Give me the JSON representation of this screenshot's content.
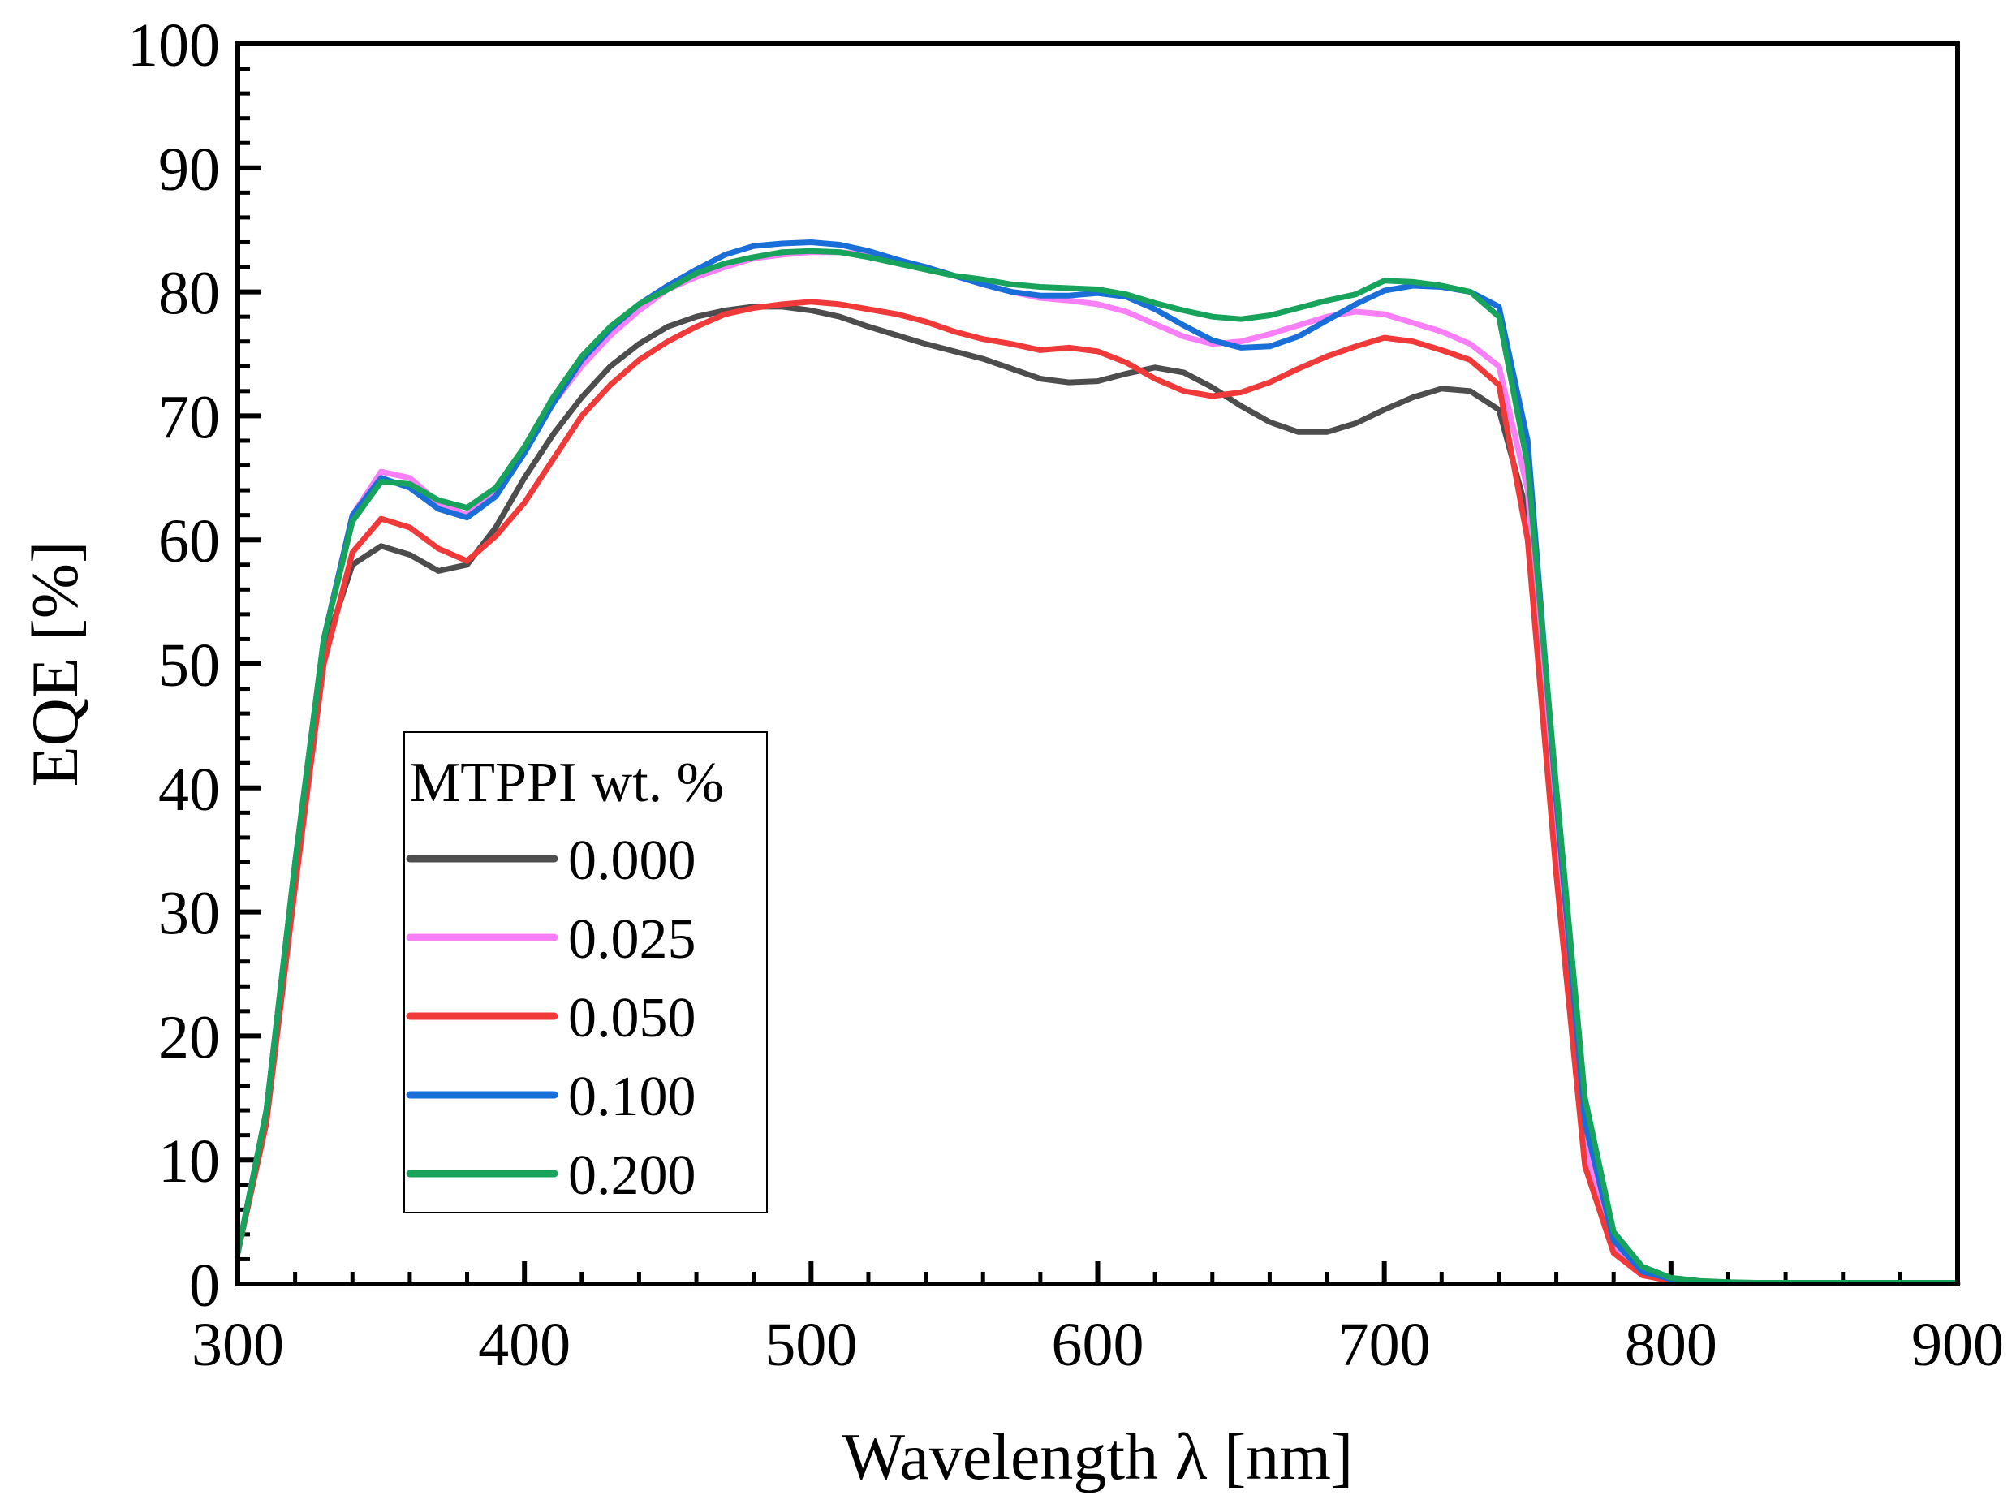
{
  "chart_data": {
    "type": "line",
    "title": "",
    "xlabel": "Wavelength λ [nm]",
    "ylabel": "EQE [%]",
    "xlim": [
      300,
      900
    ],
    "ylim": [
      0,
      100
    ],
    "xticks": [
      300,
      400,
      500,
      600,
      700,
      800,
      900
    ],
    "yticks": [
      0,
      10,
      20,
      30,
      40,
      50,
      60,
      70,
      80,
      90,
      100
    ],
    "grid": false,
    "legend": {
      "title": "MTPPI wt. %",
      "position": "lower-left"
    },
    "x": [
      300,
      310,
      320,
      330,
      340,
      350,
      360,
      370,
      380,
      390,
      400,
      410,
      420,
      430,
      440,
      450,
      460,
      470,
      480,
      490,
      500,
      510,
      520,
      530,
      540,
      550,
      560,
      570,
      580,
      590,
      600,
      610,
      620,
      630,
      640,
      650,
      660,
      670,
      680,
      690,
      700,
      710,
      720,
      730,
      740,
      750,
      760,
      770,
      780,
      790,
      800,
      810,
      820,
      830,
      840,
      850,
      860,
      870,
      880,
      890,
      900
    ],
    "series": [
      {
        "name": "0.000",
        "color": "#4d4d4d",
        "values": [
          2.5,
          14,
          33,
          51,
          58,
          59.5,
          58.8,
          57.5,
          58,
          61,
          65,
          68.5,
          71.5,
          74,
          75.8,
          77.2,
          78,
          78.5,
          78.8,
          78.8,
          78.5,
          78,
          77.2,
          76.5,
          75.8,
          75.2,
          74.6,
          73.8,
          73,
          72.7,
          72.8,
          73.4,
          73.9,
          73.5,
          72.3,
          70.8,
          69.5,
          68.7,
          68.7,
          69.4,
          70.5,
          71.5,
          72.2,
          72,
          70.5,
          62,
          35,
          10,
          2.8,
          0.8,
          0.3,
          0.15,
          0.1,
          0.05,
          0.05,
          0.05,
          0.05,
          0.05,
          0.05,
          0.05,
          0.05
        ]
      },
      {
        "name": "0.025",
        "color": "#f87ff8",
        "values": [
          2.5,
          14,
          34,
          52,
          62,
          65.5,
          65,
          63,
          62,
          64,
          67.5,
          71,
          74,
          76.5,
          78.5,
          80.2,
          81.2,
          82,
          82.7,
          83,
          83.2,
          83.2,
          83,
          82.6,
          82,
          81.3,
          80.6,
          80,
          79.5,
          79.3,
          79,
          78.4,
          77.4,
          76.4,
          75.8,
          76,
          76.6,
          77.3,
          78,
          78.4,
          78.2,
          77.5,
          76.8,
          75.8,
          74,
          64,
          36,
          11,
          3,
          0.9,
          0.35,
          0.15,
          0.1,
          0.05,
          0.05,
          0.05,
          0.05,
          0.05,
          0.05,
          0.05,
          0.05
        ]
      },
      {
        "name": "0.050",
        "color": "#f03a3a",
        "values": [
          2.5,
          13,
          32,
          50,
          59,
          61.7,
          61,
          59.3,
          58.3,
          60.3,
          63,
          66.5,
          70,
          72.5,
          74.5,
          76,
          77.2,
          78.2,
          78.7,
          79,
          79.2,
          79,
          78.6,
          78.2,
          77.6,
          76.8,
          76.2,
          75.8,
          75.3,
          75.5,
          75.2,
          74.3,
          73,
          72,
          71.6,
          71.9,
          72.7,
          73.8,
          74.8,
          75.6,
          76.3,
          76,
          75.3,
          74.5,
          72.5,
          60,
          33,
          9.5,
          2.5,
          0.7,
          0.25,
          0.1,
          0.05,
          0.05,
          0.05,
          0.05,
          0.05,
          0.05,
          0.05,
          0.05,
          0.05
        ]
      },
      {
        "name": "0.100",
        "color": "#1a6ed8",
        "values": [
          2.5,
          14,
          34,
          52,
          62,
          65,
          64.2,
          62.5,
          61.8,
          63.5,
          67,
          71,
          74.5,
          77,
          79,
          80.5,
          81.8,
          83,
          83.7,
          83.9,
          84,
          83.8,
          83.3,
          82.6,
          82,
          81.3,
          80.6,
          80,
          79.7,
          79.7,
          79.9,
          79.6,
          78.6,
          77.3,
          76.1,
          75.5,
          75.6,
          76.4,
          77.7,
          79,
          80.1,
          80.5,
          80.4,
          80,
          78.8,
          68,
          39,
          13,
          3.5,
          1.0,
          0.4,
          0.2,
          0.1,
          0.05,
          0.05,
          0.05,
          0.05,
          0.05,
          0.05,
          0.05,
          0.05
        ]
      },
      {
        "name": "0.200",
        "color": "#17a35c",
        "values": [
          2.5,
          14,
          34,
          52,
          61.5,
          64.7,
          64.5,
          63.2,
          62.6,
          64.2,
          67.5,
          71.5,
          74.8,
          77.2,
          79,
          80.2,
          81.5,
          82.3,
          82.8,
          83.2,
          83.3,
          83.2,
          82.8,
          82.3,
          81.8,
          81.3,
          81,
          80.6,
          80.4,
          80.3,
          80.2,
          79.8,
          79.1,
          78.5,
          78,
          77.8,
          78.1,
          78.7,
          79.3,
          79.8,
          80.9,
          80.8,
          80.5,
          80,
          78,
          66,
          40,
          15,
          4.2,
          1.4,
          0.5,
          0.25,
          0.15,
          0.1,
          0.1,
          0.1,
          0.1,
          0.1,
          0.1,
          0.1,
          0.1
        ]
      }
    ]
  }
}
